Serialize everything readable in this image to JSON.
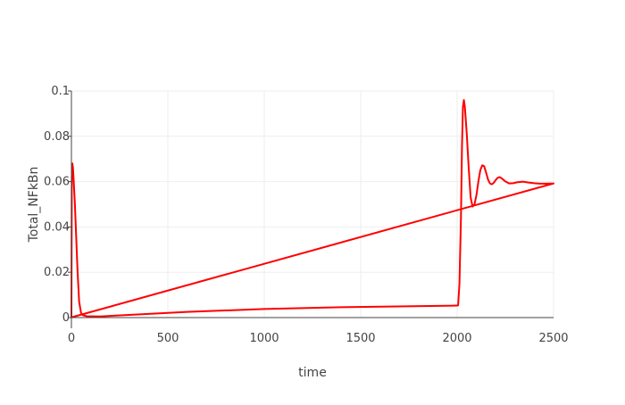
{
  "chart_data": {
    "type": "line",
    "title": "",
    "xlabel": "time",
    "ylabel": "Total_NFkBn",
    "xlim": [
      0,
      2500
    ],
    "ylim": [
      0,
      0.1
    ],
    "x_ticks": [
      0,
      500,
      1000,
      1500,
      2000,
      2500
    ],
    "x_tick_labels": [
      "0",
      "500",
      "1000",
      "1500",
      "2000",
      "2500"
    ],
    "y_ticks": [
      0,
      0.02,
      0.04,
      0.06,
      0.08,
      0.1
    ],
    "y_tick_labels": [
      "0",
      "0.02",
      "0.04",
      "0.06",
      "0.08",
      "0.1"
    ],
    "grid": true,
    "legend": false,
    "series": [
      {
        "color": "#ff0000",
        "x": [
          0,
          2,
          5,
          8,
          12,
          18,
          25,
          32,
          40,
          50,
          60,
          80,
          150,
          300,
          600,
          1000,
          1400,
          2000,
          2005,
          2012,
          2020,
          2025,
          2030,
          2035,
          2040,
          2050,
          2060,
          2070,
          2080,
          2090,
          2100,
          2110,
          2120,
          2130,
          2140,
          2150,
          2160,
          2170,
          2180,
          2190,
          2200,
          2210,
          2220,
          2230,
          2240,
          2250,
          2270,
          2290,
          2310,
          2340,
          2370,
          2400,
          2430,
          2460,
          2500,
          0,
          2500
        ],
        "y": [
          0.0001,
          0.062,
          0.068,
          0.066,
          0.06,
          0.05,
          0.035,
          0.02,
          0.007,
          0.002,
          0.001,
          0.0006,
          0.0005,
          0.0012,
          0.0025,
          0.0038,
          0.0046,
          0.0053,
          0.0054,
          0.015,
          0.045,
          0.075,
          0.093,
          0.096,
          0.093,
          0.081,
          0.066,
          0.053,
          0.049,
          0.05,
          0.054,
          0.06,
          0.065,
          0.0672,
          0.0668,
          0.064,
          0.061,
          0.0592,
          0.0588,
          0.0595,
          0.0607,
          0.0617,
          0.062,
          0.0615,
          0.0608,
          0.0601,
          0.0592,
          0.0593,
          0.0597,
          0.06,
          0.0596,
          0.0593,
          0.0591,
          0.0591,
          0.0592,
          0.0001,
          0.0592
        ]
      }
    ]
  }
}
